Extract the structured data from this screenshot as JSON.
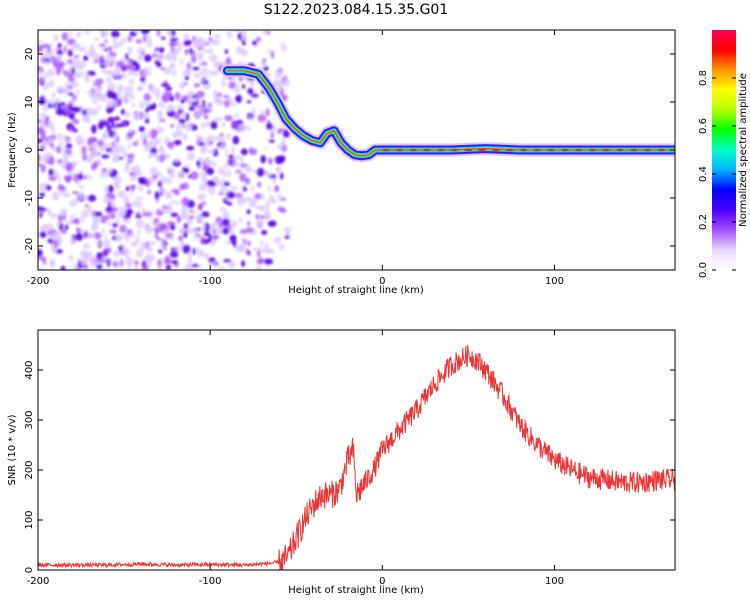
{
  "title": "S122.2023.084.15.35.G01",
  "chart_data": [
    {
      "type": "heatmap",
      "xlabel": "Height of straight line (km)",
      "ylabel": "Frequency (Hz)",
      "xlim": [
        -200,
        170
      ],
      "ylim": [
        -25,
        25
      ],
      "xticks": [
        -200,
        -100,
        0,
        100
      ],
      "yticks": [
        -20,
        -10,
        0,
        10,
        20
      ],
      "grid": false,
      "noise_region_x": [
        -200,
        -55
      ],
      "ridge": {
        "x": [
          -90,
          -80,
          -72,
          -66,
          -61,
          -56,
          -51,
          -46,
          -41,
          -36,
          -32,
          -28,
          -24,
          -20,
          -16,
          -12,
          -8,
          -4,
          0,
          20,
          40,
          60,
          80,
          100,
          120,
          140,
          160,
          170
        ],
        "y": [
          16.5,
          16.5,
          15.8,
          13,
          10,
          6.5,
          4.5,
          3,
          2,
          1.5,
          3.5,
          4,
          1.5,
          0,
          -1,
          -1.2,
          -1,
          0,
          0,
          0,
          0,
          0.3,
          0,
          0,
          0,
          0,
          0,
          0
        ]
      },
      "colorbar": {
        "label": "Normalized spectral amplitude",
        "range": [
          0,
          1
        ],
        "ticks": [
          0.0,
          0.2,
          0.4,
          0.6,
          0.8
        ],
        "colors": [
          "#ffffff",
          "#e8d9ff",
          "#a64dff",
          "#4b00ff",
          "#0000ff",
          "#00b4ff",
          "#00ffc8",
          "#00ff00",
          "#b4ff00",
          "#ffff00",
          "#ff9600",
          "#ff0000",
          "#ff0050"
        ]
      }
    },
    {
      "type": "line",
      "xlabel": "Height of straight line (km)",
      "ylabel": "SNR (10 * v/v)",
      "xlim": [
        -200,
        170
      ],
      "ylim": [
        0,
        480
      ],
      "xticks": [
        -200,
        -100,
        0,
        100
      ],
      "yticks": [
        0,
        100,
        200,
        300,
        400
      ],
      "grid": false,
      "series": [
        {
          "color": "#ee3333",
          "x": [
            -200,
            -180,
            -160,
            -140,
            -120,
            -100,
            -80,
            -70,
            -60,
            -55,
            -45,
            -40,
            -35,
            -30,
            -25,
            -20,
            -17,
            -15,
            -10,
            -5,
            0,
            10,
            20,
            30,
            40,
            50,
            55,
            60,
            70,
            80,
            90,
            100,
            110,
            120,
            130,
            140,
            150,
            160,
            170
          ],
          "values": [
            10,
            10,
            10,
            12,
            10,
            11,
            10,
            12,
            15,
            25,
            100,
            130,
            150,
            150,
            160,
            220,
            240,
            150,
            175,
            200,
            240,
            280,
            320,
            370,
            410,
            430,
            420,
            400,
            350,
            290,
            250,
            220,
            200,
            185,
            180,
            175,
            175,
            180,
            180
          ]
        }
      ]
    }
  ]
}
